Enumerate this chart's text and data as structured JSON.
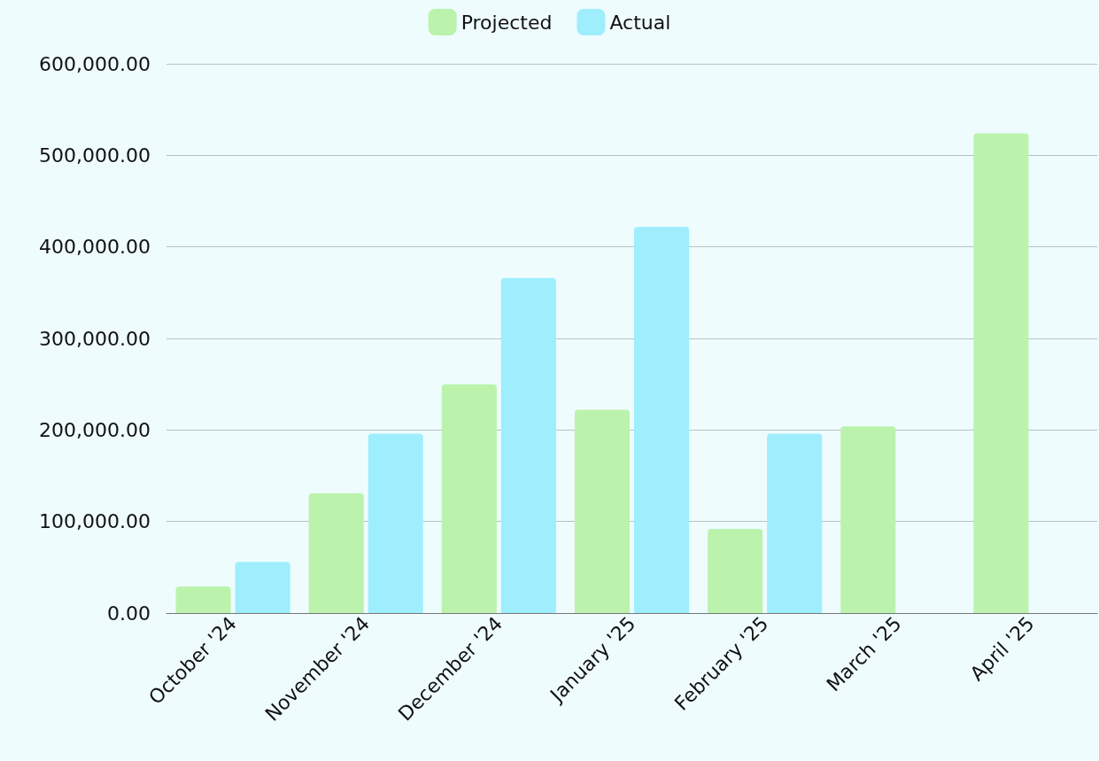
{
  "chart_data": {
    "type": "bar",
    "categories": [
      "October '24",
      "November '24",
      "December '24",
      "January '25",
      "February '25",
      "March '25",
      "April '25"
    ],
    "series": [
      {
        "name": "Projected",
        "color": "#bbf3ad",
        "values": [
          29000,
          131000,
          250000,
          222000,
          92000,
          204000,
          524000
        ]
      },
      {
        "name": "Actual",
        "color": "#9feefd",
        "values": [
          56000,
          196000,
          366000,
          422000,
          196000,
          null,
          null
        ]
      }
    ],
    "ylim": [
      0,
      600000
    ],
    "yticks": [
      {
        "value": 0,
        "label": "0.00"
      },
      {
        "value": 100000,
        "label": "100,000.00"
      },
      {
        "value": 200000,
        "label": "200,000.00"
      },
      {
        "value": 300000,
        "label": "300,000.00"
      },
      {
        "value": 400000,
        "label": "400,000.00"
      },
      {
        "value": 500000,
        "label": "500,000.00"
      },
      {
        "value": 600000,
        "label": "600,000.00"
      }
    ],
    "grid": "y",
    "legend": "top"
  }
}
